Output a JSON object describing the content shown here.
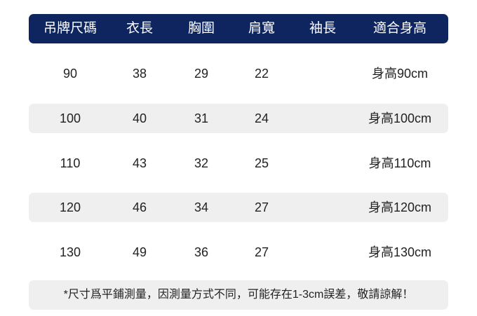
{
  "table": {
    "headers": [
      "吊牌尺碼",
      "衣長",
      "胸圍",
      "肩寬",
      "袖長",
      "適合身高"
    ],
    "rows": [
      [
        "90",
        "38",
        "29",
        "22",
        "",
        "身高90cm"
      ],
      [
        "100",
        "40",
        "31",
        "24",
        "",
        "身高100cm"
      ],
      [
        "110",
        "43",
        "32",
        "25",
        "",
        "身高110cm"
      ],
      [
        "120",
        "46",
        "34",
        "27",
        "",
        "身高120cm"
      ],
      [
        "130",
        "49",
        "36",
        "27",
        "",
        "身高130cm"
      ]
    ]
  },
  "note": "*尺寸爲平鋪測量，因測量方式不同，可能存在1-3cm誤差，敬請諒解！",
  "colors": {
    "header_bg": "#0f2560",
    "stripe_bg": "#efefef"
  }
}
